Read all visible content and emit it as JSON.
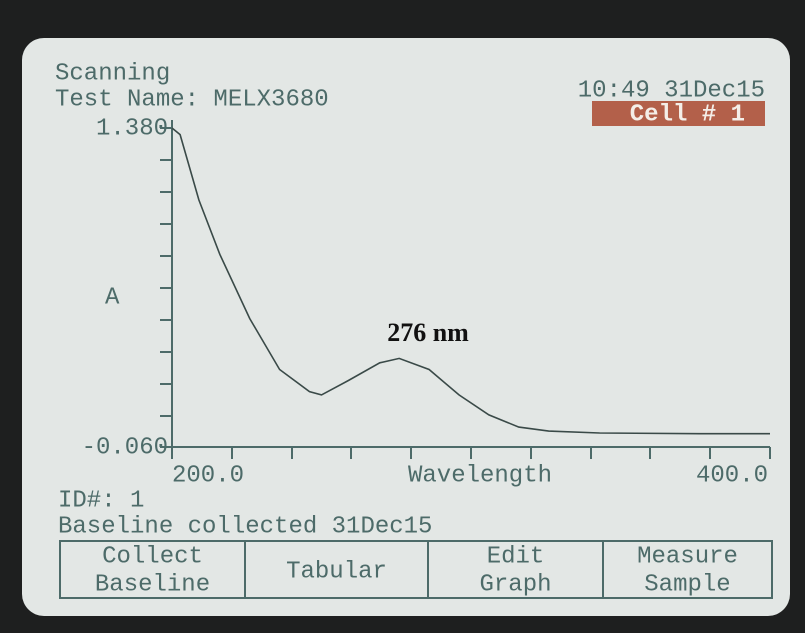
{
  "screen": {
    "status": "Scanning",
    "test_name": "Test Name: MELX3680",
    "time": "10:49 31Dec15",
    "cell": "Cell # 1",
    "id": "ID#: 1",
    "message": "Baseline collected 31Dec15",
    "buttons": [
      [
        "Collect",
        "Baseline"
      ],
      [
        "Tabular"
      ],
      [
        "Edit",
        "Graph"
      ],
      [
        "Measure",
        "Sample"
      ]
    ]
  },
  "chart_data": {
    "type": "line",
    "ylabel": "A",
    "xlabel": "Wavelength",
    "annotation": "276 nm",
    "color": "#3a4a48",
    "x": [
      200,
      202.7,
      209,
      216,
      226,
      236,
      246,
      250,
      259,
      269.5,
      276,
      286,
      296,
      306,
      316,
      326,
      343,
      376.5,
      400
    ],
    "values": [
      1.38,
      1.35,
      1.055,
      0.81,
      0.52,
      0.29,
      0.19,
      0.175,
      0.24,
      0.32,
      0.34,
      0.29,
      0.175,
      0.085,
      0.03,
      0.012,
      0.003,
      0,
      0
    ],
    "xlim": [
      200,
      400
    ],
    "xticks": [
      {
        "value": 200,
        "label": "200.0"
      },
      {
        "value": 400,
        "label": "400.0"
      }
    ],
    "ylim": [
      -0.06,
      1.38
    ],
    "yticks": [
      {
        "value": -0.06,
        "label": "-0.060"
      },
      {
        "value": 1.38,
        "label": "1.380"
      }
    ]
  }
}
